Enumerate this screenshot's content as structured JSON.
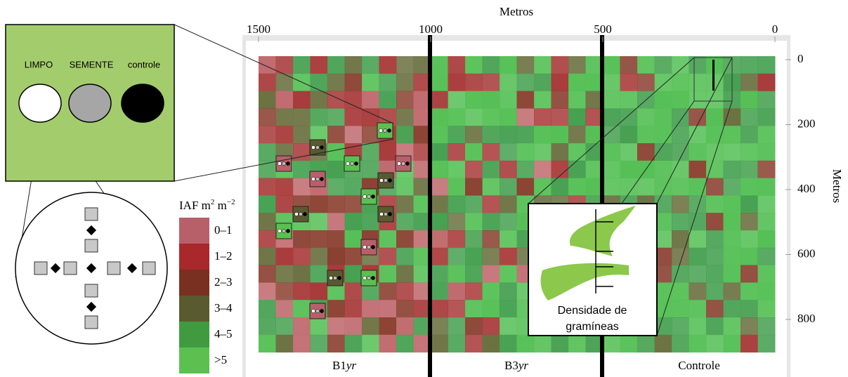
{
  "axes": {
    "x_title": "Metros",
    "x_ticks": [
      1500,
      1000,
      500,
      0
    ],
    "y_title": "Metros",
    "y_ticks": [
      0,
      200,
      400,
      600,
      800
    ]
  },
  "regions": [
    {
      "name": "B1",
      "suffix": "yr"
    },
    {
      "name": "B3",
      "suffix": "yr"
    },
    {
      "name": "Controle"
    }
  ],
  "legend": {
    "title": "IAF m",
    "sup1": "2",
    "mid": " m",
    "sup2": "−2",
    "classes": [
      "0–1",
      "1–2",
      "2–3",
      "3–4",
      "4–5",
      ">5"
    ]
  },
  "zoom": {
    "labels": [
      "LIMPO",
      "SEMENTE",
      "controle"
    ]
  },
  "inset": {
    "label_lines": [
      "Densidade de",
      "gramíneas"
    ]
  }
}
